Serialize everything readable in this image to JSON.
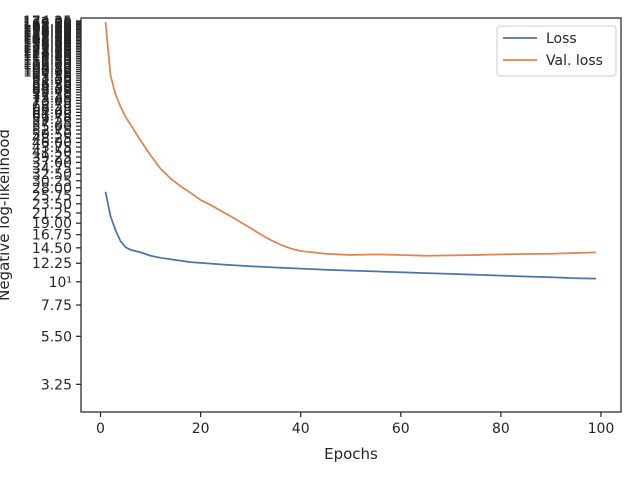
{
  "chart_data": {
    "type": "line",
    "title": "",
    "xlabel": "Epochs",
    "ylabel": "Negative log-likelihood",
    "y_scale": "log",
    "xlim": [
      -3.9,
      104.0
    ],
    "ylim": [
      2.4,
      180
    ],
    "x_ticks": [
      0,
      20,
      40,
      60,
      80,
      100
    ],
    "x_tick_labels": [
      "0",
      "20",
      "40",
      "60",
      "80",
      "100"
    ],
    "y_ticks": [
      3.25,
      5.5,
      7.75,
      10,
      12.25,
      14.5,
      16.75,
      19.0,
      21.25,
      23.5,
      25.75,
      28.0,
      30.25,
      32.5,
      34.75,
      37.0,
      39.25,
      41.5,
      43.75,
      46.0,
      48.25,
      50.5,
      52.75,
      55.0,
      57.25,
      59.5,
      61.75,
      64.0,
      66.25,
      68.5,
      70.75,
      73.0,
      75.25,
      77.5,
      79.75,
      82.0,
      84.25,
      86.5,
      88.75,
      91.0,
      93.25,
      95.5,
      97.75,
      100.0,
      102.25,
      104.5,
      106.75,
      109.0,
      111.25,
      113.5,
      115.75,
      118.0,
      120.25,
      122.5,
      124.75,
      127.0,
      129.25,
      131.5,
      133.75,
      136.0,
      138.25,
      140.5,
      142.75,
      145.0,
      147.25,
      149.5,
      151.75,
      154.0,
      156.25,
      158.5,
      160.75,
      163.0,
      165.25,
      167.5,
      169.75,
      172.0,
      174.25
    ],
    "y_tick_labels": [
      "3.25",
      "5.50",
      "7.75",
      "10¹",
      "12.25",
      "14.50",
      "16.75",
      "19.00",
      "21.25",
      "23.50",
      "25.75",
      "28.00",
      "30.25",
      "32.50",
      "34.75",
      "37.00",
      "39.25",
      "41.50",
      "43.75",
      "46.00",
      "48.25",
      "50.50",
      "52.75",
      "55.00",
      "57.25",
      "59.50",
      "61.75",
      "64.00",
      "66.25",
      "68.50",
      "70.75",
      "73.00",
      "75.25",
      "77.50",
      "79.75",
      "82.00",
      "84.25",
      "86.50",
      "88.75",
      "91.00",
      "93.25",
      "95.50",
      "97.75",
      "100.00",
      "102.25",
      "104.50",
      "106.75",
      "109.00",
      "111.25",
      "113.50",
      "115.75",
      "118.00",
      "120.25",
      "122.50",
      "124.75",
      "127.00",
      "129.25",
      "131.50",
      "133.75",
      "136.00",
      "138.25",
      "140.50",
      "142.75",
      "145.00",
      "147.25",
      "149.50",
      "151.75",
      "154.00",
      "156.25",
      "158.50",
      "160.75",
      "163.00",
      "165.25",
      "167.50",
      "169.75",
      "172.00",
      "174.25"
    ],
    "grid": false,
    "legend_position": "top-right",
    "series": [
      {
        "name": "Loss",
        "color": "#4c72b0",
        "x": [
          1,
          2,
          3,
          4,
          5,
          6,
          8,
          10,
          12,
          15,
          18,
          20,
          25,
          30,
          35,
          40,
          45,
          50,
          55,
          60,
          65,
          70,
          75,
          80,
          85,
          90,
          95,
          99
        ],
        "y": [
          26.8,
          20.5,
          17.6,
          15.6,
          14.6,
          14.2,
          13.8,
          13.3,
          13.0,
          12.7,
          12.4,
          12.3,
          12.05,
          11.85,
          11.7,
          11.55,
          11.4,
          11.3,
          11.2,
          11.1,
          11.0,
          10.9,
          10.8,
          10.7,
          10.6,
          10.5,
          10.4,
          10.35
        ]
      },
      {
        "name": "Val. loss",
        "color": "#dd8452",
        "x": [
          1,
          2,
          3,
          4,
          5,
          6,
          8,
          10,
          12,
          14,
          16,
          18,
          20,
          22,
          24,
          26,
          28,
          30,
          32,
          34,
          36,
          38,
          40,
          45,
          50,
          55,
          60,
          65,
          70,
          75,
          80,
          85,
          90,
          95,
          99
        ],
        "y": [
          172,
          96,
          78,
          68,
          61,
          56,
          47,
          40,
          34.5,
          31,
          28.5,
          26.5,
          24.5,
          23.2,
          21.8,
          20.5,
          19.2,
          18.0,
          16.8,
          15.8,
          15.0,
          14.4,
          14.0,
          13.6,
          13.4,
          13.5,
          13.4,
          13.3,
          13.35,
          13.4,
          13.5,
          13.55,
          13.6,
          13.7,
          13.8
        ]
      }
    ]
  }
}
